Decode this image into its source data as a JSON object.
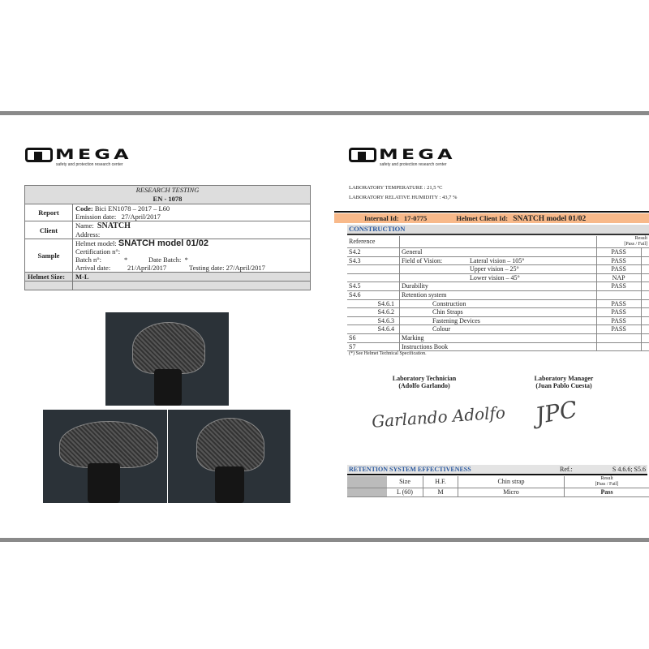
{
  "logo": {
    "name": "MEGA",
    "tagline": "safety and protection research center"
  },
  "left": {
    "title": "RESEARCH TESTING",
    "standard": "EN - 1078",
    "report": {
      "label": "Report",
      "code_label": "Code:",
      "code": "Bici EN1078 – 2017 – L60",
      "emission_label": "Emission date:",
      "emission": "27/April/2017"
    },
    "client": {
      "label": "Client",
      "name_label": "Name:",
      "name": "SNATCH",
      "address_label": "Address:"
    },
    "sample": {
      "label": "Sample",
      "model_label": "Helmet model:",
      "model": "SNATCH model 01/02",
      "cert_label": "Certification n°:",
      "batch_label": "Batch n°:",
      "batch": "*",
      "date_batch_label": "Date Batch:",
      "date_batch": "*",
      "arrival_label": "Arrival date:",
      "arrival": "21/April/2017",
      "testing_label": "Testing date:",
      "testing": "27/April/2017"
    },
    "size": {
      "label": "Helmet Size:",
      "value": "M-L"
    }
  },
  "right": {
    "temperature": "LABORATORY TEMPERATURE : 21,5 ºC",
    "humidity": "LABORATORY RELATIVE HUMIDITY : 43,7 %",
    "id_bar": {
      "internal_label": "Internal Id:",
      "internal": "17-0775",
      "client_label": "Helmet Client Id:",
      "client": "SNATCH model 01/02"
    },
    "construction": {
      "title": "CONSTRUCTION",
      "ref_header": "Reference",
      "result_header": "Result",
      "result_sub": "[Pass / Fail]",
      "rows": [
        {
          "ref": "S4.2",
          "desc": "General",
          "sub": "",
          "result": "PASS"
        },
        {
          "ref": "S4.3",
          "desc": "Field of Vision:",
          "sub": "Lateral vision – 105°",
          "result": "PASS"
        },
        {
          "ref": "",
          "desc": "",
          "sub": "Upper vision – 25°",
          "result": "PASS"
        },
        {
          "ref": "",
          "desc": "",
          "sub": "Lower vision – 45°",
          "result": "NAP"
        },
        {
          "ref": "S4.5",
          "desc": "Durability",
          "sub": "",
          "result": "PASS"
        },
        {
          "ref": "S4.6",
          "desc": "Retention system",
          "sub": "",
          "result": ""
        },
        {
          "ref": "S4.6.1",
          "desc": "Construction",
          "sub": "",
          "result": "PASS"
        },
        {
          "ref": "S4.6.2",
          "desc": "Chin Straps",
          "sub": "",
          "result": "PASS"
        },
        {
          "ref": "S4.6.3",
          "desc": "Fastening Devices",
          "sub": "",
          "result": "PASS"
        },
        {
          "ref": "S4.6.4",
          "desc": "Colour",
          "sub": "",
          "result": "PASS"
        },
        {
          "ref": "S6",
          "desc": "Marking",
          "sub": "",
          "result": ""
        },
        {
          "ref": "S7",
          "desc": "Instructions Book",
          "sub": "",
          "result": ""
        }
      ],
      "footnote": "(*) See Helmet Technical Specification."
    },
    "technician": {
      "title": "Laboratory Technician",
      "name": "(Adolfo Garlando)",
      "signature": "Garlando Adolfo"
    },
    "manager": {
      "title": "Laboratory Manager",
      "name": "(Juan Pablo Cuesta)",
      "signature": "JPC"
    },
    "retention": {
      "title": "RETENTION SYSTEM EFFECTIVENESS",
      "ref_label": "Ref.:",
      "ref": "S 4.6.6; S5.6",
      "headers": [
        "Size",
        "H.F.",
        "Chin strap",
        "Result",
        "[Pass / Fail]"
      ],
      "row": [
        "L (60)",
        "M",
        "Micro",
        "Pass"
      ]
    }
  },
  "colors": {
    "orange": "#f8b98a",
    "header_blue": "#2c5aa0",
    "gray_bar": "#8a8a8a"
  }
}
